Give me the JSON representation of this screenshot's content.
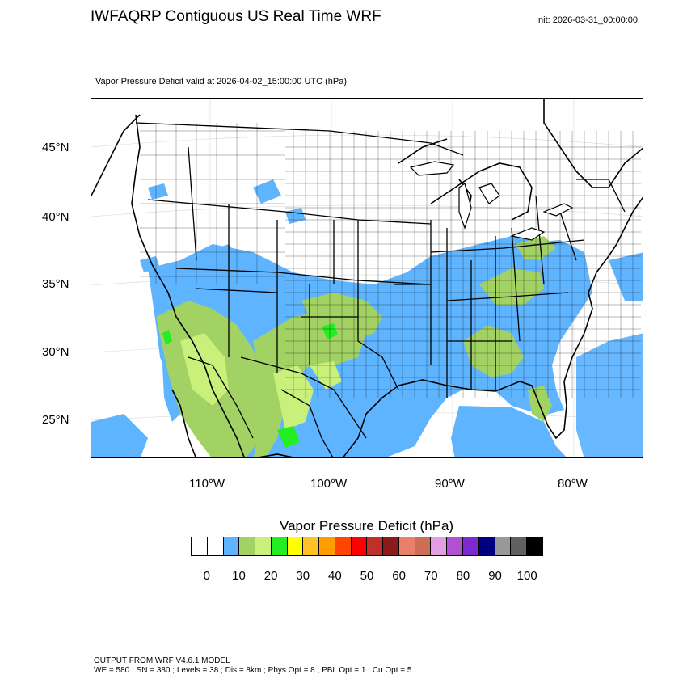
{
  "header": {
    "title": "IWFAQRP Contiguous US Real Time WRF",
    "init": "Init: 2026-03-31_00:00:00",
    "valid": "Vapor Pressure Deficit valid at 2026-04-02_15:00:00 UTC   (hPa)"
  },
  "map": {
    "lat_labels": [
      "45°N",
      "40°N",
      "35°N",
      "30°N",
      "25°N"
    ],
    "lon_labels": [
      "110°W",
      "100°W",
      "90°W",
      "80°W"
    ],
    "colors": {
      "light_blue": "#5fb4ff",
      "olive_green": "#a2d164",
      "light_green": "#c8f07a",
      "bright_green": "#22ee22",
      "state_border": "#000000",
      "county_border": "#000000"
    }
  },
  "colorbar": {
    "title": "Vapor Pressure Deficit  (hPa)",
    "colors": [
      "#ffffff",
      "#ffffff",
      "#5fb4ff",
      "#a2d164",
      "#c8f07a",
      "#22ee22",
      "#ffff00",
      "#ffc125",
      "#ff9d00",
      "#ff4500",
      "#ff0000",
      "#c0302b",
      "#8b1a1a",
      "#e9806a",
      "#cd6d55",
      "#e19ee1",
      "#b150d0",
      "#7c2ad0",
      "#000080",
      "#999999",
      "#606060",
      "#000000"
    ],
    "tick_labels": [
      "0",
      "10",
      "20",
      "30",
      "40",
      "50",
      "60",
      "70",
      "80",
      "90",
      "100"
    ]
  },
  "footer": {
    "line1": "OUTPUT FROM WRF V4.6.1 MODEL",
    "line2": "WE = 580 ; SN = 380 ; Levels = 38 ; Dis = 8km ; Phys Opt = 8 ; PBL Opt = 1 ; Cu Opt = 5"
  }
}
